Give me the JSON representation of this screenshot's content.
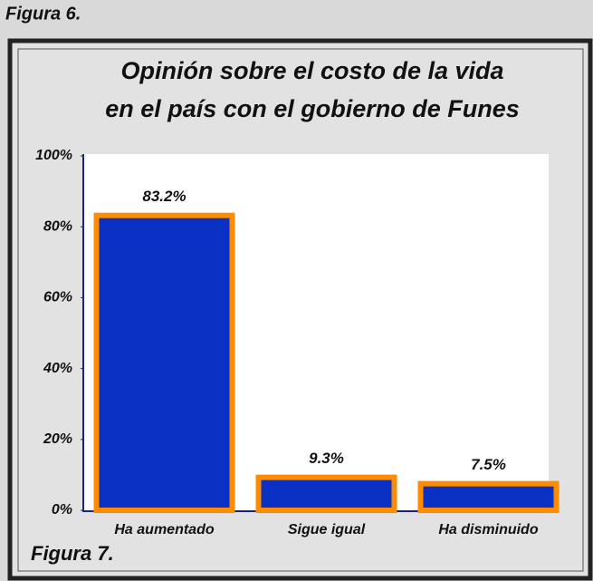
{
  "figure_label_top": "Figura 6.",
  "figure_label_bottom": "Figura 7.",
  "chart_data": {
    "type": "bar",
    "title": [
      "Opinión sobre el costo de la vida",
      "en el país con el gobierno de Funes"
    ],
    "categories": [
      "Ha aumentado",
      "Sigue igual",
      "Ha disminuido"
    ],
    "values": [
      83.2,
      9.3,
      7.5
    ],
    "value_labels": [
      "83.2%",
      "9.3%",
      "7.5%"
    ],
    "color": "#0a30c4",
    "edge_color": "#ff8c00",
    "ylim": [
      0,
      100
    ],
    "yticks": [
      {
        "value": 0,
        "label": "0%"
      },
      {
        "value": 20,
        "label": "20%"
      },
      {
        "value": 40,
        "label": "40%"
      },
      {
        "value": 60,
        "label": "60%"
      },
      {
        "value": 80,
        "label": "80%"
      },
      {
        "value": 100,
        "label": "100%"
      }
    ],
    "grid": false
  }
}
